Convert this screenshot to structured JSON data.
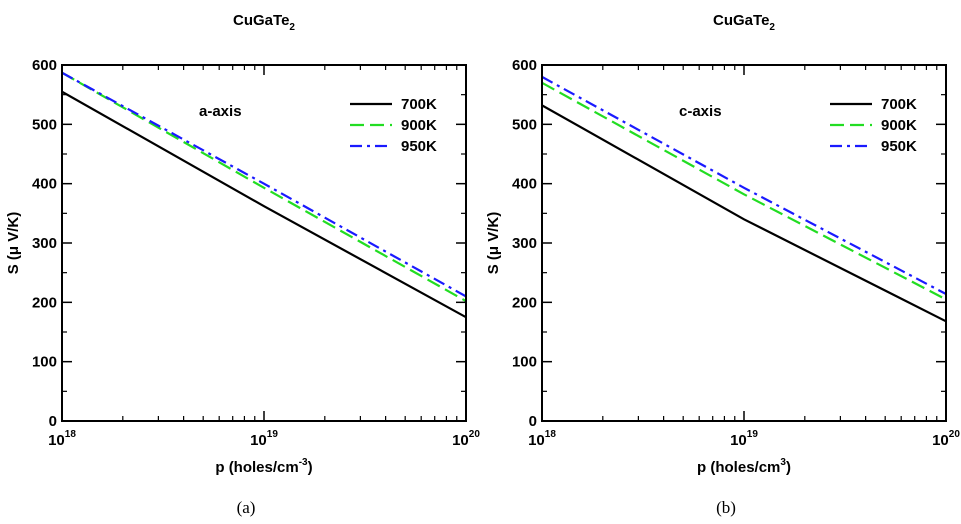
{
  "chart_data": [
    {
      "type": "line",
      "title": "CuGaTe",
      "title_sub": "2",
      "annotation": "a-axis",
      "caption": "(a)",
      "xlabel_pre": "p (holes/cm",
      "xlabel_sup": "-3",
      "xlabel_post": ")",
      "ylabel": "S (μ V/K)",
      "xscale": "log",
      "xlim": [
        1e+18,
        1e+20
      ],
      "ylim": [
        0,
        600
      ],
      "yticks": [
        0,
        100,
        200,
        300,
        400,
        500,
        600
      ],
      "xticks": [
        {
          "base": "10",
          "exp": "18",
          "value": 1e+18
        },
        {
          "base": "10",
          "exp": "19",
          "value": 1e+19
        },
        {
          "base": "10",
          "exp": "20",
          "value": 1e+20
        }
      ],
      "legend_position": "top-right",
      "series": [
        {
          "name": "700K",
          "color": "#000000",
          "dash": "solid",
          "x": [
            1e+18,
            1e+19,
            1e+20
          ],
          "y": [
            555,
            362,
            175
          ]
        },
        {
          "name": "900K",
          "color": "#22dd22",
          "dash": "dashed",
          "x": [
            1e+18,
            1e+19,
            1e+20
          ],
          "y": [
            587,
            393,
            202
          ]
        },
        {
          "name": "950K",
          "color": "#1a1aff",
          "dash": "dashdot",
          "x": [
            1e+18,
            1e+19,
            1e+20
          ],
          "y": [
            587,
            400,
            210
          ]
        }
      ]
    },
    {
      "type": "line",
      "title": "CuGaTe",
      "title_sub": "2",
      "annotation": "c-axis",
      "caption": "(b)",
      "xlabel_pre": "p (holes/cm",
      "xlabel_sup": "3",
      "xlabel_post": ")",
      "ylabel": "S (μ V/K)",
      "xscale": "log",
      "xlim": [
        1e+18,
        1e+20
      ],
      "ylim": [
        0,
        600
      ],
      "yticks": [
        0,
        100,
        200,
        300,
        400,
        500,
        600
      ],
      "xticks": [
        {
          "base": "10",
          "exp": "18",
          "value": 1e+18
        },
        {
          "base": "10",
          "exp": "19",
          "value": 1e+19
        },
        {
          "base": "10",
          "exp": "20",
          "value": 1e+20
        }
      ],
      "legend_position": "top-right",
      "series": [
        {
          "name": "700K",
          "color": "#000000",
          "dash": "solid",
          "x": [
            1e+18,
            1e+19,
            1e+20
          ],
          "y": [
            532,
            340,
            168
          ]
        },
        {
          "name": "900K",
          "color": "#22dd22",
          "dash": "dashed",
          "x": [
            1e+18,
            1e+19,
            1e+20
          ],
          "y": [
            570,
            382,
            205
          ]
        },
        {
          "name": "950K",
          "color": "#1a1aff",
          "dash": "dashdot",
          "x": [
            1e+18,
            1e+19,
            1e+20
          ],
          "y": [
            580,
            393,
            214
          ]
        }
      ]
    }
  ]
}
